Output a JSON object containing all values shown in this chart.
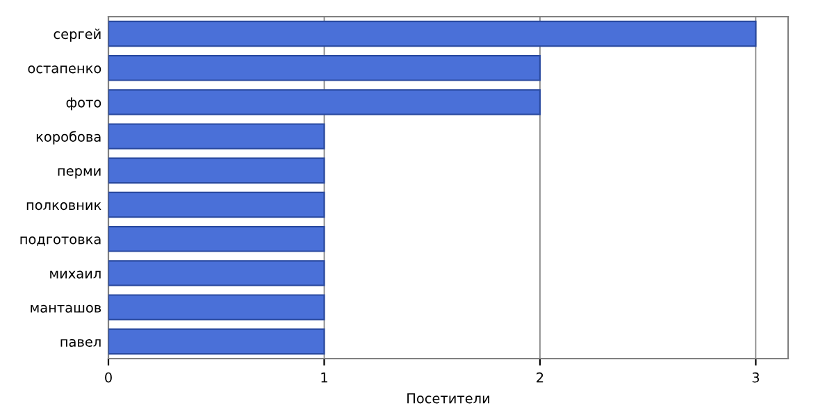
{
  "chart_data": {
    "type": "bar",
    "orientation": "horizontal",
    "xlabel": "Посетители",
    "categories": [
      "сергей",
      "остапенко",
      "фото",
      "коробова",
      "перми",
      "полковник",
      "подготовка",
      "михаил",
      "манташов",
      "павел"
    ],
    "values": [
      3,
      2,
      2,
      1,
      1,
      1,
      1,
      1,
      1,
      1
    ],
    "color": "#4a70d8",
    "xlim": [
      0,
      3.15
    ],
    "xticks": [
      0,
      1,
      2,
      3
    ],
    "grid": "x"
  }
}
